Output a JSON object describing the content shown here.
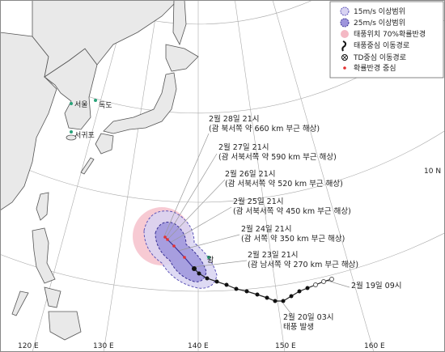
{
  "legend": {
    "items": [
      "15m/s 이상범위",
      "25m/s 이상범위",
      "태풍위치 70%확률반경",
      "태풍중심 이동경로",
      "TD중심 이동경로",
      "확률반경 중심"
    ]
  },
  "places": [
    "서울",
    "독도",
    "서귀포",
    "괌"
  ],
  "forecasts": [
    {
      "time": "2월 28일 21시",
      "location": "(괌 북서쪽 약 660 km 부근 해상)"
    },
    {
      "time": "2월 27일 21시",
      "location": "(괌 서북서쪽 약 590 km 부근 해상)"
    },
    {
      "time": "2월 26일 21시",
      "location": "(괌 서북서쪽 약 520 km 부근 해상)"
    },
    {
      "time": "2월 25일 21시",
      "location": "(괌 서북서쪽 약 450 km 부근 해상)"
    },
    {
      "time": "2월 24일 21시",
      "location": "(괌 서쪽 약 350 km 부근 해상)"
    },
    {
      "time": "2월 23일 21시",
      "location": "(괌 남서쪽 약 270 km 부근 해상)"
    }
  ],
  "history": {
    "start": "2월 19일 09시",
    "genesis_time": "2월 20일 03시",
    "genesis_label": "태풍 발생"
  },
  "axes": {
    "longitudes": [
      "120 E",
      "130 E",
      "140 E",
      "150 E",
      "160 E"
    ],
    "latitude": "10 N"
  }
}
